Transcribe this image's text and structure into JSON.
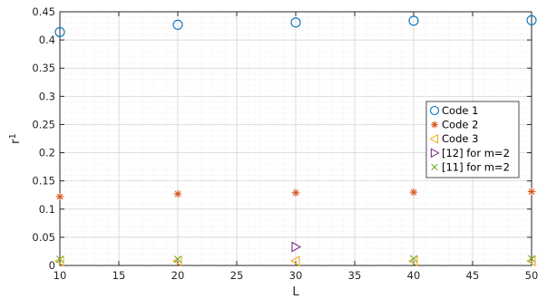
{
  "chart_data": {
    "type": "scatter",
    "xlabel": "L",
    "ylabel": "r",
    "ylabel_subscript": "1",
    "xlim": [
      10,
      50
    ],
    "ylim": [
      0,
      0.45
    ],
    "xticks": [
      "10",
      "15",
      "20",
      "25",
      "30",
      "35",
      "40",
      "45",
      "50"
    ],
    "yticks": [
      "0",
      "0.05",
      "0.1",
      "0.15",
      "0.2",
      "0.25",
      "0.3",
      "0.35",
      "0.4",
      "0.45"
    ],
    "grid": true,
    "minor_grid": true,
    "legend_position": "right",
    "series": [
      {
        "name": "Code 1",
        "marker": "circle",
        "color": "#0072BD",
        "x": [
          10,
          20,
          30,
          40,
          50
        ],
        "y": [
          0.414,
          0.427,
          0.431,
          0.434,
          0.435
        ]
      },
      {
        "name": "Code 2",
        "marker": "asterisk",
        "color": "#D95319",
        "x": [
          10,
          20,
          30,
          40,
          50
        ],
        "y": [
          0.122,
          0.127,
          0.129,
          0.13,
          0.131
        ]
      },
      {
        "name": "Code 3",
        "marker": "triangle-left",
        "color": "#EDB120",
        "x": [
          10,
          20,
          30,
          40,
          50
        ],
        "y": [
          0.008,
          0.008,
          0.008,
          0.008,
          0.008
        ]
      },
      {
        "name": "[12] for m=2",
        "marker": "triangle-right",
        "color": "#7E2F8E",
        "x": [
          30
        ],
        "y": [
          0.033
        ]
      },
      {
        "name": "[11] for m=2",
        "marker": "x",
        "color": "#77AC30",
        "x": [
          10,
          20,
          40,
          50
        ],
        "y": [
          0.011,
          0.011,
          0.012,
          0.012
        ]
      }
    ]
  }
}
